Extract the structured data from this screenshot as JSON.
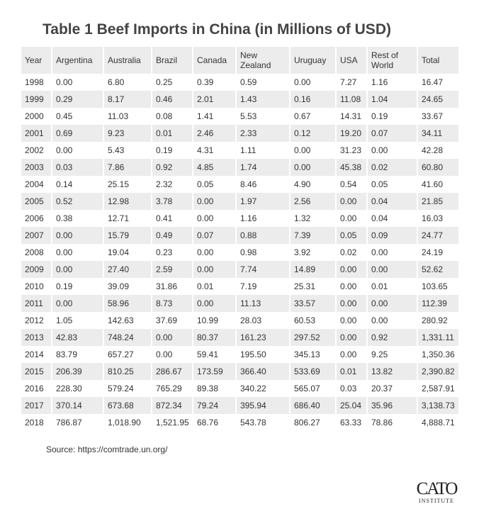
{
  "title": "Table 1 Beef Imports in China (in Millions of USD)",
  "table": {
    "columns": [
      "Year",
      "Argentina",
      "Australia",
      "Brazil",
      "Canada",
      "New Zealand",
      "Uruguay",
      "USA",
      "Rest of World",
      "Total"
    ],
    "rows": [
      [
        "1998",
        "0.00",
        "6.80",
        "0.25",
        "0.39",
        "0.59",
        "0.00",
        "7.27",
        "1.16",
        "16.47"
      ],
      [
        "1999",
        "0.29",
        "8.17",
        "0.46",
        "2.01",
        "1.43",
        "0.16",
        "11.08",
        "1.04",
        "24.65"
      ],
      [
        "2000",
        "0.45",
        "11.03",
        "0.08",
        "1.41",
        "5.53",
        "0.67",
        "14.31",
        "0.19",
        "33.67"
      ],
      [
        "2001",
        "0.69",
        "9.23",
        "0.01",
        "2.46",
        "2.33",
        "0.12",
        "19.20",
        "0.07",
        "34.11"
      ],
      [
        "2002",
        "0.00",
        "5.43",
        "0.19",
        "4.31",
        "1.11",
        "0.00",
        "31.23",
        "0.00",
        "42.28"
      ],
      [
        "2003",
        "0.03",
        "7.86",
        "0.92",
        "4.85",
        "1.74",
        "0.00",
        "45.38",
        "0.02",
        "60.80"
      ],
      [
        "2004",
        "0.14",
        "25.15",
        "2.32",
        "0.05",
        "8.46",
        "4.90",
        "0.54",
        "0.05",
        "41.60"
      ],
      [
        "2005",
        "0.52",
        "12.98",
        "3.78",
        "0.00",
        "1.97",
        "2.56",
        "0.00",
        "0.04",
        "21.85"
      ],
      [
        "2006",
        "0.38",
        "12.71",
        "0.41",
        "0.00",
        "1.16",
        "1.32",
        "0.00",
        "0.04",
        "16.03"
      ],
      [
        "2007",
        "0.00",
        "15.79",
        "0.49",
        "0.07",
        "0.88",
        "7.39",
        "0.05",
        "0.09",
        "24.77"
      ],
      [
        "2008",
        "0.00",
        "19.04",
        "0.23",
        "0.00",
        "0.98",
        "3.92",
        "0.02",
        "0.00",
        "24.19"
      ],
      [
        "2009",
        "0.00",
        "27.40",
        "2.59",
        "0.00",
        "7.74",
        "14.89",
        "0.00",
        "0.00",
        "52.62"
      ],
      [
        "2010",
        "0.19",
        "39.09",
        "31.86",
        "0.01",
        "7.19",
        "25.31",
        "0.00",
        "0.01",
        "103.65"
      ],
      [
        "2011",
        "0.00",
        "58.96",
        "8.73",
        "0.00",
        "11.13",
        "33.57",
        "0.00",
        "0.00",
        "112.39"
      ],
      [
        "2012",
        "1.05",
        "142.63",
        "37.69",
        "10.99",
        "28.03",
        "60.53",
        "0.00",
        "0.00",
        "280.92"
      ],
      [
        "2013",
        "42.83",
        "748.24",
        "0.00",
        "80.37",
        "161.23",
        "297.52",
        "0.00",
        "0.92",
        "1,331.11"
      ],
      [
        "2014",
        "83.79",
        "657.27",
        "0.00",
        "59.41",
        "195.50",
        "345.13",
        "0.00",
        "9.25",
        "1,350.36"
      ],
      [
        "2015",
        "206.39",
        "810.25",
        "286.67",
        "173.59",
        "366.40",
        "533.69",
        "0.01",
        "13.82",
        "2,390.82"
      ],
      [
        "2016",
        "228.30",
        "579.24",
        "765.29",
        "89.38",
        "340.22",
        "565.07",
        "0.03",
        "20.37",
        "2,587.91"
      ],
      [
        "2017",
        "370.14",
        "673.68",
        "872.34",
        "79.24",
        "395.94",
        "686.40",
        "25.04",
        "35.96",
        "3,138.73"
      ],
      [
        "2018",
        "786.87",
        "1,018.90",
        "1,521.95",
        "68.76",
        "543.78",
        "806.27",
        "63.33",
        "78.86",
        "4,888.71"
      ]
    ]
  },
  "source": "Source: https://comtrade.un.org/",
  "logo": {
    "name": "CATO",
    "subtitle": "INSTITUTE"
  }
}
